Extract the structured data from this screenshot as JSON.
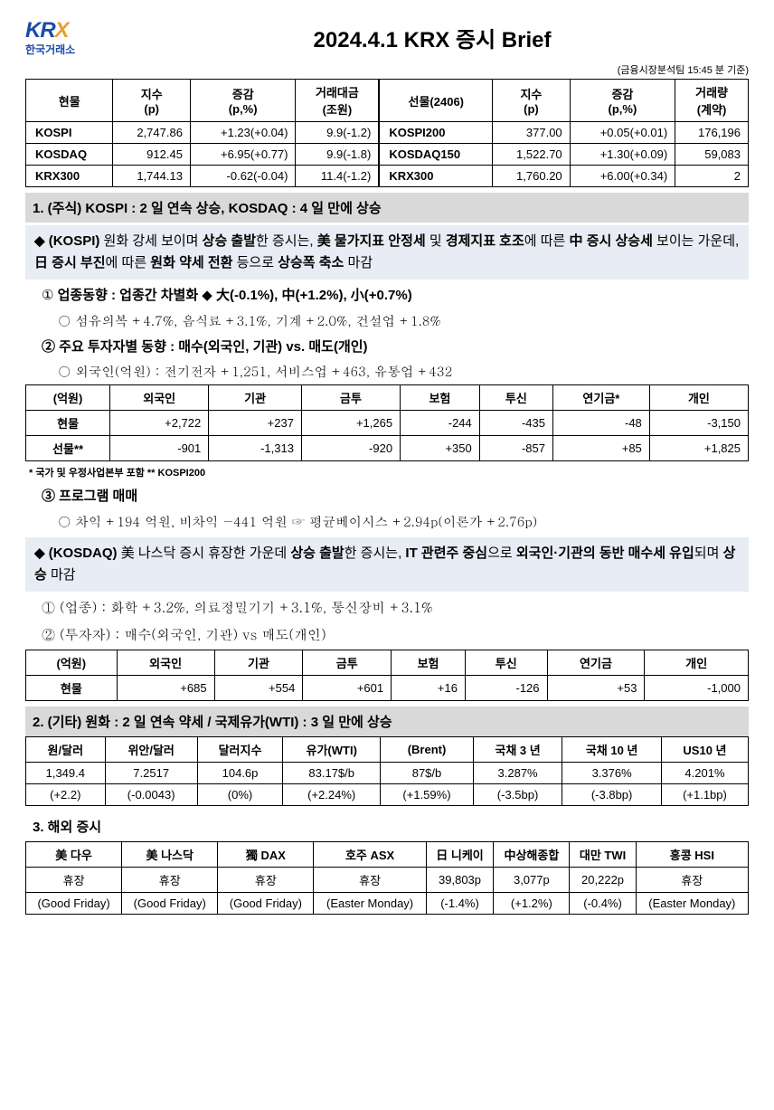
{
  "header": {
    "logo_main": "KRX",
    "logo_sub": "한국거래소",
    "title": "2024.4.1  KRX 증시 Brief",
    "timestamp": "(금융시장분석팀 15:45 분 기준)"
  },
  "main_table": {
    "headers_left": [
      "현물",
      "지수\n(p)",
      "증감\n(p,%)",
      "거래대금\n(조원)"
    ],
    "headers_right": [
      "선물(2406)",
      "지수\n(p)",
      "증감\n(p,%)",
      "거래량\n(계약)"
    ],
    "rows": [
      {
        "l": [
          "KOSPI",
          "2,747.86",
          "+1.23(+0.04)",
          "9.9(-1.2)"
        ],
        "r": [
          "KOSPI200",
          "377.00",
          "+0.05(+0.01)",
          "176,196"
        ]
      },
      {
        "l": [
          "KOSDAQ",
          "912.45",
          "+6.95(+0.77)",
          "9.9(-1.8)"
        ],
        "r": [
          "KOSDAQ150",
          "1,522.70",
          "+1.30(+0.09)",
          "59,083"
        ]
      },
      {
        "l": [
          "KRX300",
          "1,744.13",
          "-0.62(-0.04)",
          "11.4(-1.2)"
        ],
        "r": [
          "KRX300",
          "1,760.20",
          "+6.00(+0.34)",
          "2"
        ]
      }
    ]
  },
  "section1": {
    "head": "1. (주식) KOSPI : 2 일  연속  상승, KOSDAQ : 4 일  만에  상승",
    "kospi_box_pre": "◆ (KOSPI) ",
    "kospi_box_1": "원화 강세 보이며 ",
    "kospi_box_b1": "상승 출발",
    "kospi_box_2": "한 증시는, ",
    "kospi_box_b2": "美 물가지표 안정세",
    "kospi_box_3": " 및 ",
    "kospi_box_b3": "경제지표 호조",
    "kospi_box_4": "에 따른 ",
    "kospi_box_b4": "中 증시 상승세",
    "kospi_box_5": " 보이는 가운데, ",
    "kospi_box_b5": "日 증시 부진",
    "kospi_box_6": "에 따른 ",
    "kospi_box_b6": "원화 약세 전환",
    "kospi_box_7": " 등으로 ",
    "kospi_box_b7": "상승폭 축소",
    "kospi_box_8": " 마감",
    "line1_pre": "① ",
    "line1_b1": "업종동향 : 업종간 차별화",
    "line1_mid": "  ◆ ",
    "line1_b2": "大(-0.1%), 中(+1.2%), 小(+0.7%)",
    "line1_sub": "○ 섬유의복 +4.7%, 음식료 +3.1%, 기계 +2.0%, 건설업 +1.8%",
    "line2": "② 주요 투자자별 동향 : 매수(외국인, 기관) vs. 매도(개인)",
    "line2_sub": "○ 외국인(억원) : 전기전자 +1,251, 서비스업 +463, 유통업 +432"
  },
  "investor_table1": {
    "headers": [
      "(억원)",
      "외국인",
      "기관",
      "금투",
      "보험",
      "투신",
      "연기금*",
      "개인"
    ],
    "rows": [
      [
        "현물",
        "+2,722",
        "+237",
        "+1,265",
        "-244",
        "-435",
        "-48",
        "-3,150"
      ],
      [
        "선물**",
        "-901",
        "-1,313",
        "-920",
        "+350",
        "-857",
        "+85",
        "+1,825"
      ]
    ],
    "footnote": "* 국가 및 우정사업본부 포함   ** KOSPI200"
  },
  "program": {
    "line": "③ 프로그램 매매",
    "sub": "○ 차익 +194 억원, 비차익 −441 억원 ☞ 평균베이시스 +2.94p(이론가 +2.76p)"
  },
  "kosdaq_box": {
    "pre": "◆ (KOSDAQ) ",
    "t1": "美 나스닥 증시 휴장한 가운데 ",
    "b1": "상승 출발",
    "t2": "한 증시는,  ",
    "b2": "IT 관련주 중심",
    "t3": "으로 ",
    "b3": "외국인·기관의 동반 매수세 유입",
    "t4": "되며 ",
    "b4": "상승",
    "t5": " 마감",
    "sub1": "① (업종) : 화학 +3.2%, 의료정밀기기 +3.1%, 통신장비 +3.1%",
    "sub2": "② (투자자) : 매수(외국인, 기관) vs 매도(개인)"
  },
  "investor_table2": {
    "headers": [
      "(억원)",
      "외국인",
      "기관",
      "금투",
      "보험",
      "투신",
      "연기금",
      "개인"
    ],
    "rows": [
      [
        "현물",
        "+685",
        "+554",
        "+601",
        "+16",
        "-126",
        "+53",
        "-1,000"
      ]
    ]
  },
  "section2": {
    "head": "2. (기타) 원화 : 2 일  연속 약세  /  국제유가(WTI) : 3 일  만에  상승",
    "headers": [
      "원/달러",
      "위안/달러",
      "달러지수",
      "유가(WTI)",
      "(Brent)",
      "국채 3 년",
      "국채 10 년",
      "US10 년"
    ],
    "row1": [
      "1,349.4",
      "7.2517",
      "104.6p",
      "83.17$/b",
      "87$/b",
      "3.287%",
      "3.376%",
      "4.201%"
    ],
    "row2": [
      "(+2.2)",
      "(-0.0043)",
      "(0%)",
      "(+2.24%)",
      "(+1.59%)",
      "(-3.5bp)",
      "(-3.8bp)",
      "(+1.1bp)"
    ]
  },
  "section3": {
    "head": "3. 해외 증시",
    "headers": [
      "美 다우",
      "美 나스닥",
      "獨 DAX",
      "호주 ASX",
      "日 니케이",
      "中상해종합",
      "대만 TWI",
      "홍콩 HSI"
    ],
    "row1": [
      "휴장",
      "휴장",
      "휴장",
      "휴장",
      "39,803p",
      "3,077p",
      "20,222p",
      "휴장"
    ],
    "row2": [
      "(Good Friday)",
      "(Good Friday)",
      "(Good Friday)",
      "(Easter Monday)",
      "(-1.4%)",
      "(+1.2%)",
      "(-0.4%)",
      "(Easter Monday)"
    ]
  }
}
